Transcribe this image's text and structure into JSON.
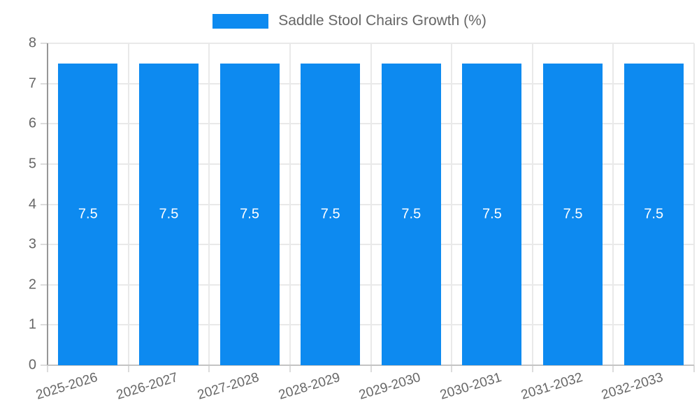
{
  "legend": {
    "label": "Saddle Stool Chairs Growth (%)",
    "swatch_color": "#0d8af0"
  },
  "chart_data": {
    "type": "bar",
    "categories": [
      "2025-2026",
      "2026-2027",
      "2027-2028",
      "2028-2029",
      "2029-2030",
      "2030-2031",
      "2031-2032",
      "2032-2033"
    ],
    "series": [
      {
        "name": "Saddle Stool Chairs Growth (%)",
        "values": [
          7.5,
          7.5,
          7.5,
          7.5,
          7.5,
          7.5,
          7.5,
          7.5
        ],
        "color": "#0d8af0"
      }
    ],
    "value_labels": [
      "7.5",
      "7.5",
      "7.5",
      "7.5",
      "7.5",
      "7.5",
      "7.5",
      "7.5"
    ],
    "title": "",
    "xlabel": "",
    "ylabel": "",
    "ylim": [
      0,
      8
    ],
    "yticks": [
      0,
      1,
      2,
      3,
      4,
      5,
      6,
      7,
      8
    ],
    "grid": true,
    "legend_position": "top"
  },
  "colors": {
    "bar": "#0d8af0",
    "value_label": "#ffffff",
    "axis_text": "#666666",
    "gridline": "#e9e9e9",
    "y_axis_line": "#979797",
    "x_axis_line": "#c4c4c4",
    "tick": "#dcdcdc",
    "background": "#ffffff"
  }
}
